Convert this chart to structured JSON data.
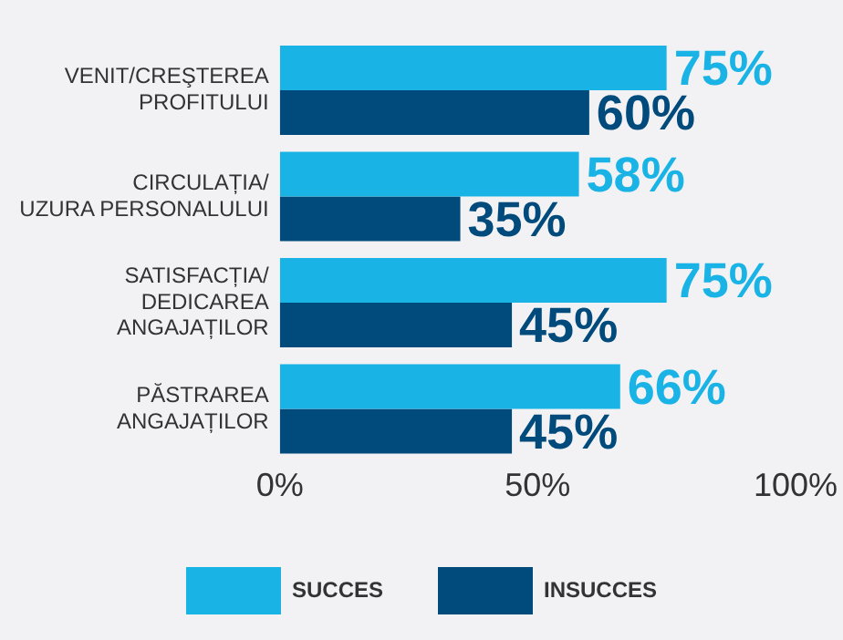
{
  "chart_data": {
    "type": "bar",
    "orientation": "horizontal",
    "categories": [
      "VENIT/CREŞTEREA\nPROFITULUI",
      "CIRCULAȚIA/\nUZURA PERSONALULUI",
      "SATISFACȚIA/\nDEDICAREA\nANGAJAȚILOR",
      "PĂSTRAREA\nANGAJAȚILOR"
    ],
    "series": [
      {
        "name": "SUCCES",
        "color": "#1ab3e6",
        "values": [
          75,
          58,
          75,
          66
        ],
        "value_labels": [
          "75%",
          "58%",
          "75%",
          "66%"
        ]
      },
      {
        "name": "INSUCCES",
        "color": "#004a7c",
        "values": [
          60,
          35,
          45,
          45
        ],
        "value_labels": [
          "60%",
          "35%",
          "45%",
          "45%"
        ]
      }
    ],
    "xlim": [
      0,
      100
    ],
    "xticks": [
      {
        "value": 0,
        "label": "0%"
      },
      {
        "value": 50,
        "label": "50%"
      },
      {
        "value": 100,
        "label": "100%"
      }
    ],
    "grid": false,
    "legend": "bottom"
  }
}
